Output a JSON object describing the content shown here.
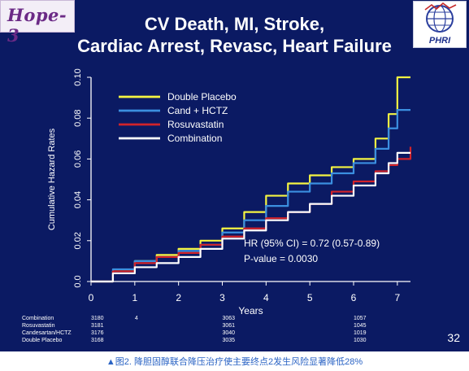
{
  "header": {
    "badge": "Hope-3",
    "logo_text": "PHRI",
    "title_line1": "CV Death, MI, Stroke,",
    "title_line2": "Cardiac Arrest, Revasc, Heart Failure"
  },
  "slide_number": "32",
  "caption": "▲图2. 降胆固醇联合降压治疗使主要终点2发生风险显著降低28%",
  "colors": {
    "background": "#0b1a63",
    "double_placebo": "#f5f542",
    "cand_hctz": "#3b8fe0",
    "rosuvastatin": "#d2232a",
    "combination": "#ffffff"
  },
  "chart_data": {
    "type": "line",
    "title": "",
    "xlabel": "Years",
    "ylabel": "Cumulative Hazard Rates",
    "xlim": [
      0,
      7.3
    ],
    "ylim": [
      0,
      0.1
    ],
    "x_ticks": [
      "0",
      "1",
      "2",
      "3",
      "4",
      "5",
      "6",
      "7"
    ],
    "y_ticks": [
      "0.0",
      "0.02",
      "0.04",
      "0.06",
      "0.08",
      "0.10"
    ],
    "legend_position": "top-left",
    "series": [
      {
        "name": "Double Placebo",
        "color": "#f5f542",
        "x": [
          0,
          0.5,
          1,
          1.5,
          2,
          2.5,
          3,
          3.5,
          4,
          4.5,
          5,
          5.5,
          6,
          6.5,
          6.8,
          7,
          7.3
        ],
        "y": [
          0,
          0.005,
          0.01,
          0.013,
          0.016,
          0.02,
          0.026,
          0.034,
          0.042,
          0.048,
          0.052,
          0.056,
          0.06,
          0.07,
          0.082,
          0.1,
          0.1
        ]
      },
      {
        "name": "Cand + HCTZ",
        "color": "#3b8fe0",
        "x": [
          0,
          0.5,
          1,
          1.5,
          2,
          2.5,
          3,
          3.5,
          4,
          4.5,
          5,
          5.5,
          6,
          6.5,
          6.8,
          7,
          7.3
        ],
        "y": [
          0,
          0.006,
          0.01,
          0.012,
          0.015,
          0.018,
          0.024,
          0.03,
          0.037,
          0.044,
          0.048,
          0.053,
          0.058,
          0.065,
          0.075,
          0.084,
          0.084
        ]
      },
      {
        "name": "Rosuvastatin",
        "color": "#d2232a",
        "x": [
          0,
          0.5,
          1,
          1.5,
          2,
          2.5,
          3,
          3.5,
          4,
          4.5,
          5,
          5.5,
          6,
          6.5,
          6.8,
          7,
          7.3
        ],
        "y": [
          0,
          0.005,
          0.009,
          0.012,
          0.014,
          0.018,
          0.022,
          0.026,
          0.031,
          0.034,
          0.038,
          0.044,
          0.049,
          0.054,
          0.057,
          0.06,
          0.066
        ]
      },
      {
        "name": "Combination",
        "color": "#ffffff",
        "x": [
          0,
          0.5,
          1,
          1.5,
          2,
          2.5,
          3,
          3.5,
          4,
          4.5,
          5,
          5.5,
          6,
          6.5,
          6.8,
          7,
          7.3
        ],
        "y": [
          0,
          0.004,
          0.007,
          0.009,
          0.012,
          0.016,
          0.021,
          0.025,
          0.03,
          0.034,
          0.038,
          0.042,
          0.047,
          0.053,
          0.058,
          0.063,
          0.063
        ]
      }
    ],
    "annotation": {
      "line1": "HR (95% CI) = 0.72 (0.57-0.89)",
      "line2": "P-value = 0.0030"
    },
    "at_risk": {
      "years": [
        0,
        1,
        3,
        6
      ],
      "rows": [
        {
          "label": "Combination",
          "values": [
            "3180",
            "4",
            "3063",
            "1057"
          ]
        },
        {
          "label": "Rosuvastatin",
          "values": [
            "3181",
            "",
            "3061",
            "1045"
          ]
        },
        {
          "label": "Candesartan/HCTZ",
          "values": [
            "3176",
            "",
            "3040",
            "1019"
          ]
        },
        {
          "label": "Double Placebo",
          "values": [
            "3168",
            "",
            "3035",
            "1030"
          ]
        }
      ]
    }
  }
}
